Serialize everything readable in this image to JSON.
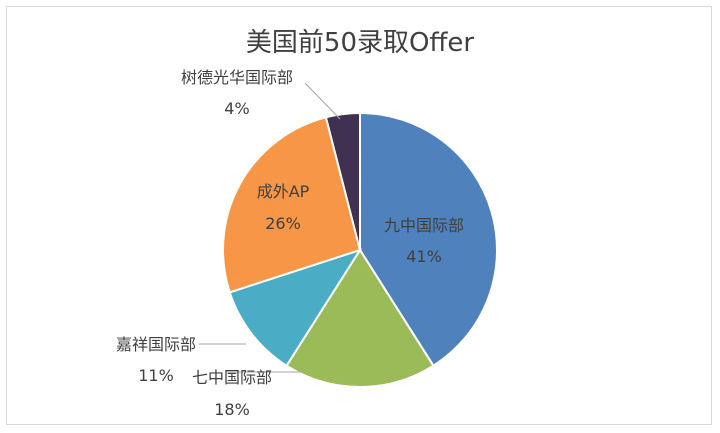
{
  "chart_data": {
    "type": "pie",
    "title": "美国前50录取Offer",
    "slices": [
      {
        "name": "九中国际部",
        "value": 41,
        "label": "41%",
        "color": "#4f81bd"
      },
      {
        "name": "七中国际部",
        "value": 18,
        "label": "18%",
        "color": "#9bbb59"
      },
      {
        "name": "嘉祥国际部",
        "value": 11,
        "label": "11%",
        "color": "#4bacc6"
      },
      {
        "name": "成外AP",
        "value": 26,
        "label": "26%",
        "color": "#f79646"
      },
      {
        "name": "树德光华国际部",
        "value": 4,
        "label": "4%",
        "color": "#403152"
      }
    ]
  }
}
